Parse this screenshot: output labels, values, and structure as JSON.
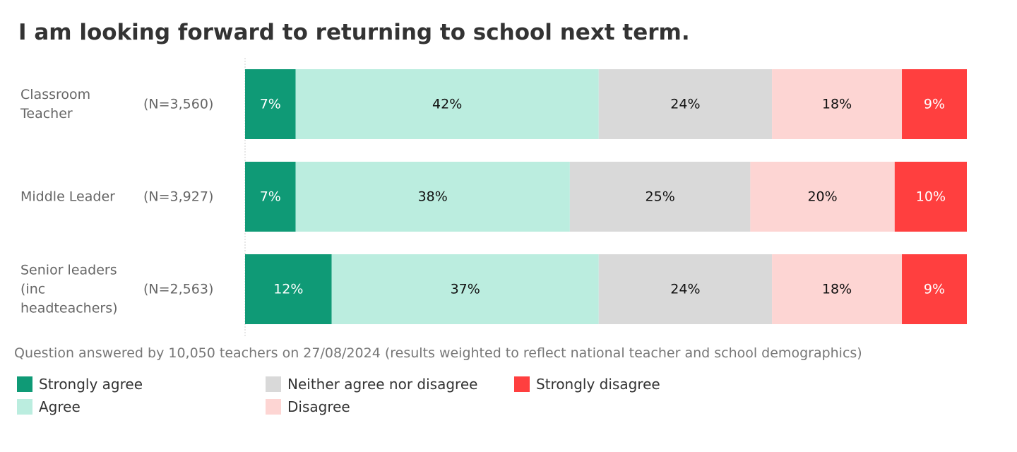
{
  "title": "I am looking forward to returning to school next term.",
  "note": "Question answered by 10,050 teachers on 27/08/2024 (results weighted to reflect national teacher and school demographics)",
  "chart_data": {
    "type": "bar",
    "orientation": "horizontal",
    "stacked": "100%",
    "title": "I am looking forward to returning to school next term.",
    "categories": [
      {
        "label": [
          "Classroom",
          "Teacher"
        ],
        "n": "(N=3,560)"
      },
      {
        "label": [
          "Middle Leader"
        ],
        "n": "(N=3,927)"
      },
      {
        "label": [
          "Senior leaders",
          "(inc",
          "headteachers)"
        ],
        "n": "(N=2,563)"
      }
    ],
    "series": [
      {
        "name": "Strongly agree",
        "color": "#0f9a76",
        "text_color": "#ffffff",
        "values": [
          7,
          7,
          12
        ]
      },
      {
        "name": "Agree",
        "color": "#bbeddf",
        "text_color": "#111111",
        "values": [
          42,
          38,
          37
        ]
      },
      {
        "name": "Neither agree nor disagree",
        "color": "#d9d9d9",
        "text_color": "#111111",
        "values": [
          24,
          25,
          24
        ]
      },
      {
        "name": "Disagree",
        "color": "#fdd5d3",
        "text_color": "#111111",
        "values": [
          18,
          20,
          18
        ]
      },
      {
        "name": "Strongly disagree",
        "color": "#ff3f3f",
        "text_color": "#ffffff",
        "values": [
          9,
          10,
          9
        ]
      }
    ],
    "value_suffix": "%",
    "legend_position": "bottom-left"
  }
}
